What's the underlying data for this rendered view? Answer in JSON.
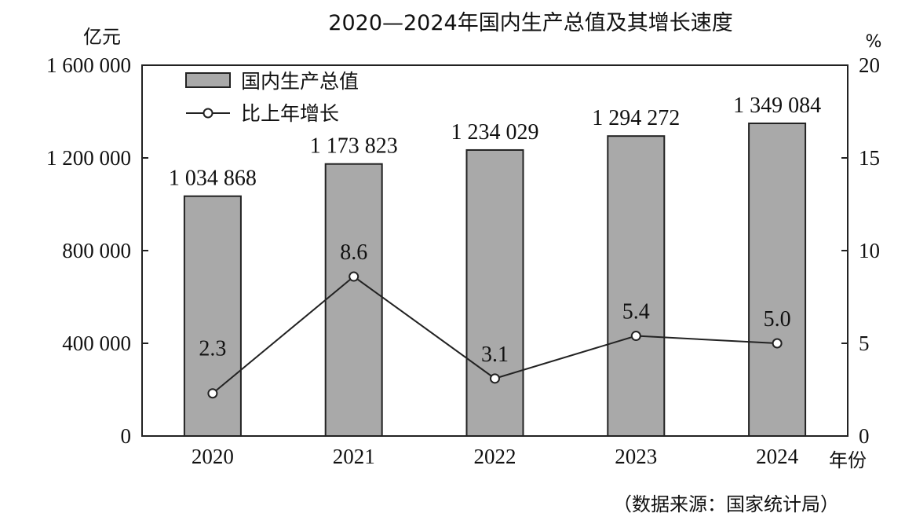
{
  "chart_data": {
    "type": "bar",
    "title": "2020—2024年国内生产总值及其增长速度",
    "ylabel": "亿元",
    "y2label": "%",
    "xlabel": "年份",
    "source": "（数据来源：国家统计局）",
    "categories": [
      "2020",
      "2021",
      "2022",
      "2023",
      "2024"
    ],
    "ylim": [
      0,
      1600000
    ],
    "yticks": [
      0,
      400000,
      800000,
      1200000,
      1600000
    ],
    "ytick_labels": [
      "0",
      "400 000",
      "800 000",
      "1 200 000",
      "1 600 000"
    ],
    "y2lim": [
      0,
      20
    ],
    "y2ticks": [
      0,
      5,
      10,
      15,
      20
    ],
    "y2tick_labels": [
      "0",
      "5",
      "10",
      "15",
      "20"
    ],
    "legend_position": "top-left",
    "series": [
      {
        "name": "国内生产总值",
        "type": "bar",
        "axis": "left",
        "values": [
          1034868,
          1173823,
          1234029,
          1294272,
          1349084
        ],
        "labels": [
          "1 034 868",
          "1 173 823",
          "1 234 029",
          "1 294 272",
          "1 349 084"
        ],
        "color": "#a9a9a9"
      },
      {
        "name": "比上年增长",
        "type": "line",
        "axis": "right",
        "values": [
          2.3,
          8.6,
          3.1,
          5.4,
          5.0
        ],
        "labels": [
          "2.3",
          "8.6",
          "3.1",
          "5.4",
          "5.0"
        ],
        "color": "#222222"
      }
    ]
  }
}
